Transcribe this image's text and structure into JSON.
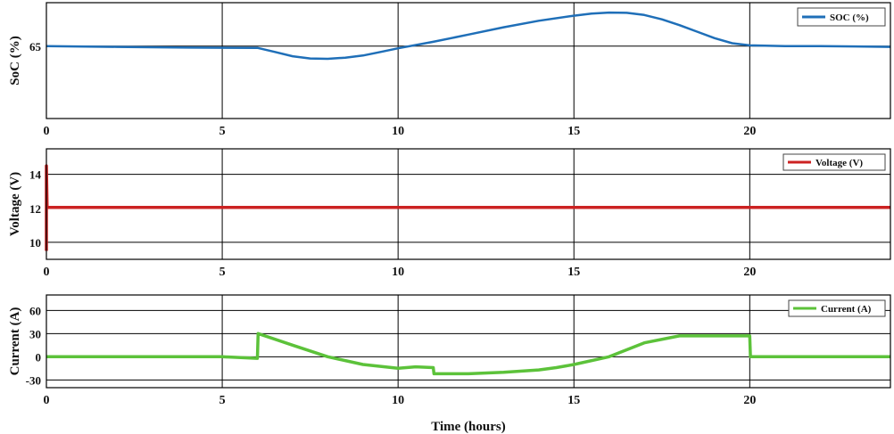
{
  "chart_data": [
    {
      "type": "line",
      "ylabel": "SoC (%)",
      "xlim": [
        0,
        24
      ],
      "ylim": [
        60,
        68
      ],
      "x_ticks": [
        "0",
        "5",
        "10",
        "15",
        "20"
      ],
      "y_ticks": [
        {
          "value": 65,
          "label": "65"
        }
      ],
      "grid": true,
      "legend_position": "top-right",
      "series": [
        {
          "name": "SOC (%)",
          "color": "#1f6fb8",
          "x": [
            0,
            2,
            4,
            6,
            6.5,
            7,
            7.5,
            8,
            8.5,
            9,
            9.5,
            10,
            11,
            12,
            13,
            14,
            15,
            15.5,
            16,
            16.5,
            17,
            17.5,
            18,
            18.5,
            19,
            19.5,
            20,
            21,
            22,
            23,
            24
          ],
          "y": [
            65,
            64.95,
            64.9,
            64.88,
            64.6,
            64.3,
            64.15,
            64.12,
            64.2,
            64.35,
            64.6,
            64.85,
            65.3,
            65.8,
            66.3,
            66.75,
            67.1,
            67.25,
            67.32,
            67.3,
            67.15,
            66.85,
            66.45,
            66.0,
            65.55,
            65.2,
            65.05,
            65.0,
            65.0,
            64.98,
            64.95
          ]
        }
      ]
    },
    {
      "type": "line",
      "ylabel": "Voltage (V)",
      "xlim": [
        0,
        24
      ],
      "ylim": [
        9,
        15.5
      ],
      "x_ticks": [
        "0",
        "5",
        "10",
        "15",
        "20"
      ],
      "y_ticks": [
        {
          "value": 10,
          "label": "10"
        },
        {
          "value": 12,
          "label": "12"
        },
        {
          "value": 14,
          "label": "14"
        }
      ],
      "grid": true,
      "legend_position": "top-right",
      "series": [
        {
          "name": "Voltage (V)",
          "color": "#cc2222",
          "x": [
            0,
            0,
            0.02,
            24
          ],
          "y": [
            9.5,
            14.5,
            12.05,
            12.05
          ]
        }
      ]
    },
    {
      "type": "line",
      "ylabel": "Current (A)",
      "xlabel": "Time (hours)",
      "xlim": [
        0,
        24
      ],
      "ylim": [
        -40,
        80
      ],
      "x_ticks": [
        "0",
        "5",
        "10",
        "15",
        "20"
      ],
      "y_ticks": [
        {
          "value": -30,
          "label": "-30"
        },
        {
          "value": 0,
          "label": "0"
        },
        {
          "value": 30,
          "label": "30"
        },
        {
          "value": 60,
          "label": "60"
        }
      ],
      "grid": true,
      "legend_position": "top-right",
      "series": [
        {
          "name": "Current (A)",
          "color": "#5cc23a",
          "x": [
            0,
            5,
            6,
            6.02,
            7,
            8,
            9,
            10,
            10.5,
            11,
            11.02,
            12,
            13,
            14,
            14.5,
            15,
            16,
            17,
            18,
            19,
            20,
            20.02,
            21,
            22,
            23,
            24
          ],
          "y": [
            0,
            0,
            -2,
            30,
            15,
            0,
            -10,
            -15,
            -13,
            -14,
            -22,
            -22,
            -20,
            -17,
            -14,
            -10,
            0,
            18,
            27,
            27,
            27,
            0,
            0,
            0,
            0,
            0
          ]
        }
      ]
    }
  ]
}
